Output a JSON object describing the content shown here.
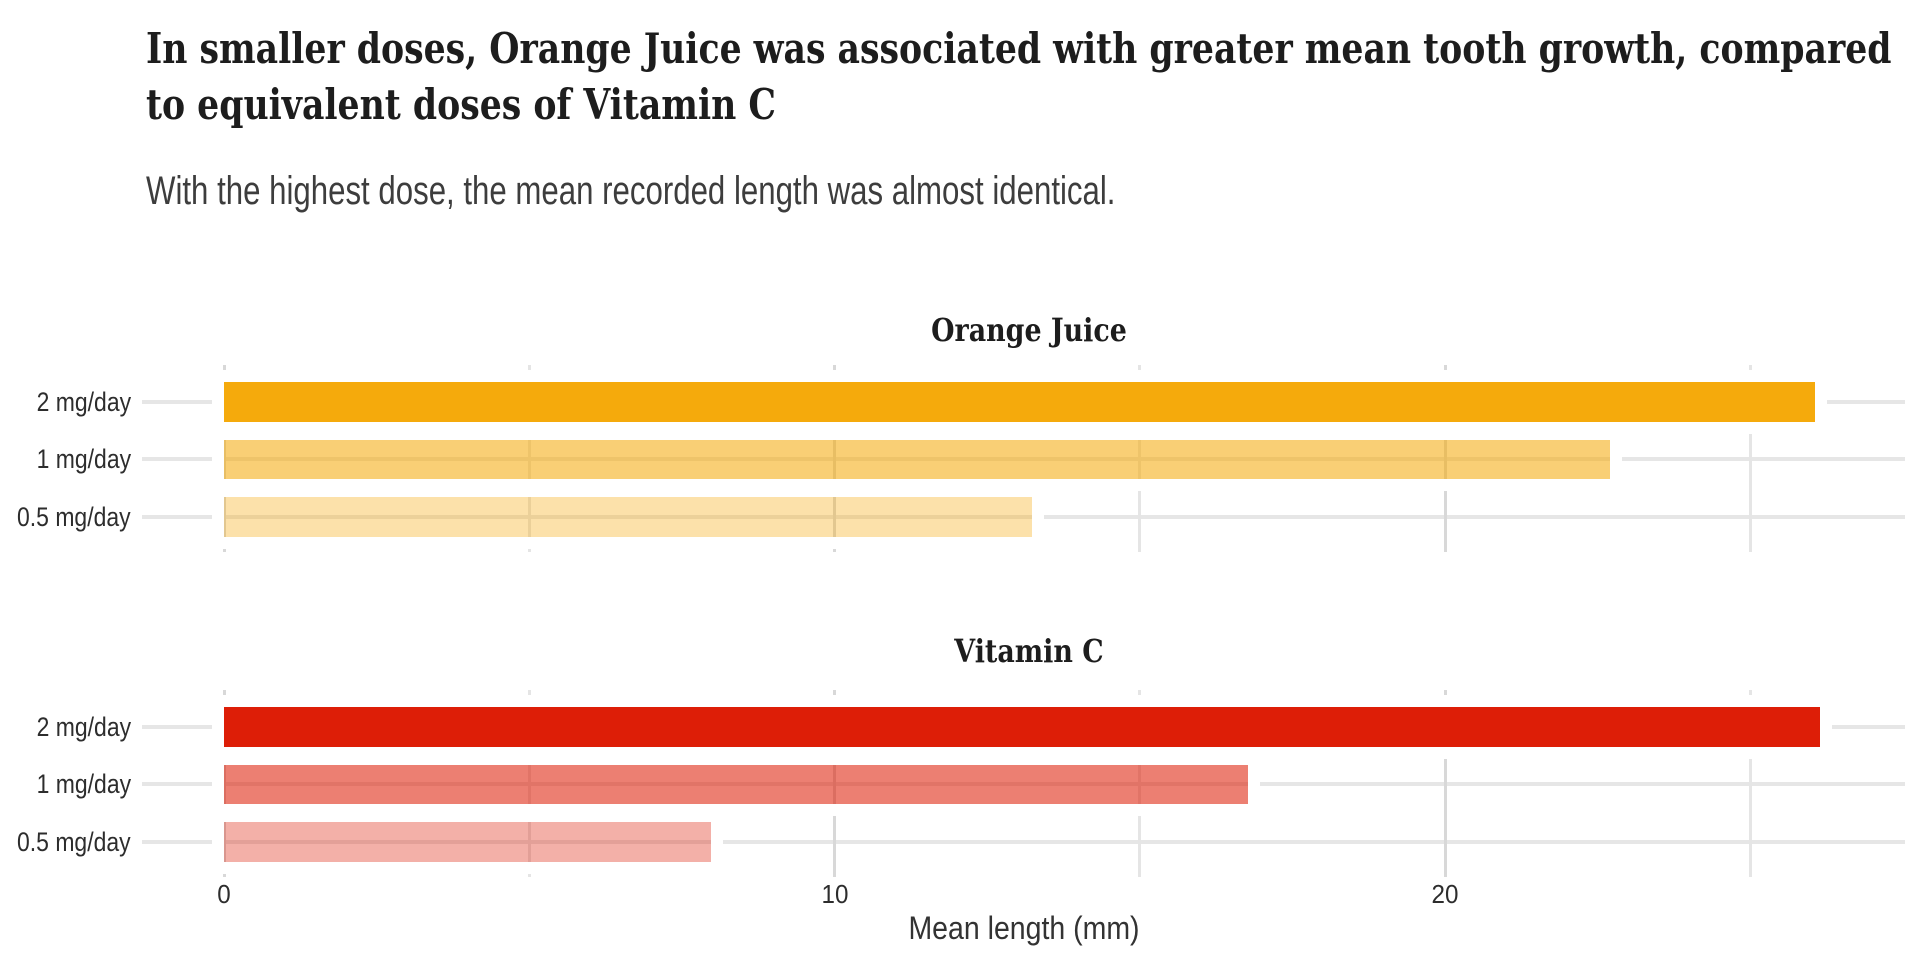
{
  "title": {
    "line1": "In smaller doses, Orange Juice was associated with greater mean tooth growth, compared",
    "line2": "to equivalent doses of Vitamin C"
  },
  "subtitle": "With the highest dose, the mean recorded length was almost identical.",
  "chart_data": {
    "type": "bar",
    "orientation": "horizontal",
    "xlabel": "Mean length (mm)",
    "x_ticks": [
      0,
      10,
      20
    ],
    "x_tick_labels": [
      "0",
      "10",
      "20"
    ],
    "x_minor_ticks": [
      5,
      15,
      25
    ],
    "xlim": [
      0,
      27.5
    ],
    "grid": true,
    "categories": [
      "2 mg/day",
      "1 mg/day",
      "0.5 mg/day"
    ],
    "facets": [
      {
        "title": "Orange Juice",
        "color": "#F5AA0C",
        "values": [
          26.06,
          22.7,
          13.23
        ],
        "opacities": [
          1.0,
          0.567,
          0.35
        ]
      },
      {
        "title": "Vitamin C",
        "color": "#DD1E07",
        "values": [
          26.14,
          16.77,
          7.98
        ],
        "opacities": [
          1.0,
          0.567,
          0.35
        ]
      }
    ]
  }
}
